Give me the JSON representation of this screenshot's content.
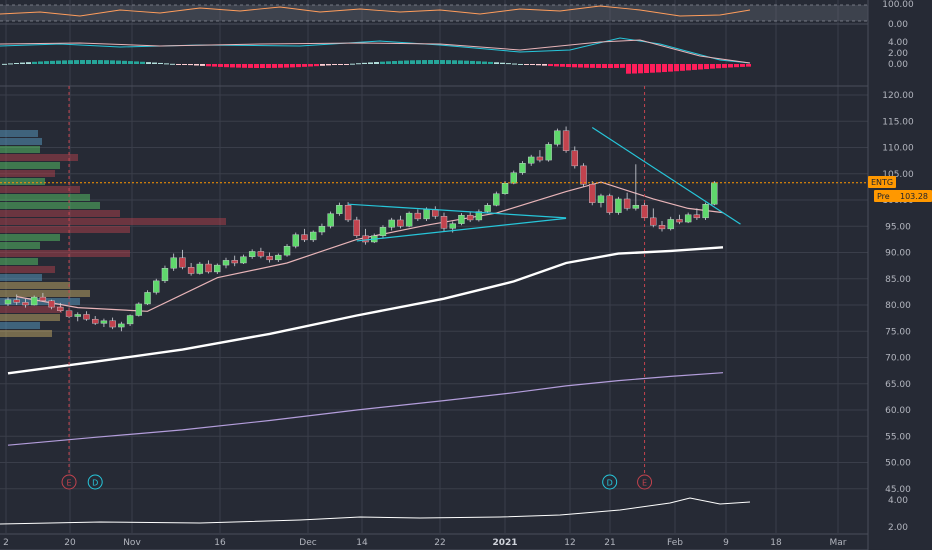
{
  "chart_data": {
    "type": "candlestick",
    "ticker": "ENTG",
    "pre_label": "Pre",
    "pre_price": "103.28",
    "price_axis": [
      "120.00",
      "115.00",
      "110.00",
      "105.00",
      "100.00",
      "95.00",
      "90.00",
      "85.00",
      "80.00",
      "75.00",
      "70.00",
      "65.00",
      "60.00",
      "55.00",
      "50.00",
      "45.00"
    ],
    "rsi_axis": [
      "100.00",
      "0.00"
    ],
    "macd_axis": [
      "4.00",
      "2.00",
      "0.00"
    ],
    "vol_axis": [
      "4.00",
      "2.00"
    ],
    "x_ticks": [
      {
        "label": "2",
        "bold": false
      },
      {
        "label": "20",
        "bold": false
      },
      {
        "label": "Nov",
        "bold": false
      },
      {
        "label": "16",
        "bold": false
      },
      {
        "label": "Dec",
        "bold": false
      },
      {
        "label": "14",
        "bold": false
      },
      {
        "label": "22",
        "bold": false
      },
      {
        "label": "2021",
        "bold": true
      },
      {
        "label": "12",
        "bold": false
      },
      {
        "label": "21",
        "bold": false
      },
      {
        "label": "Feb",
        "bold": false
      },
      {
        "label": "9",
        "bold": false
      },
      {
        "label": "18",
        "bold": false
      },
      {
        "label": "Mar",
        "bold": false
      }
    ],
    "events": [
      {
        "label": "E",
        "kind": "earnings"
      },
      {
        "label": "D",
        "kind": "dividend"
      },
      {
        "label": "D",
        "kind": "dividend"
      },
      {
        "label": "E",
        "kind": "earnings"
      }
    ],
    "colors": {
      "up": "#5fd86c",
      "down": "#c2434e",
      "bg": "#262a35",
      "grid": "#3a3e4a",
      "price_line": "#ff9800",
      "triangle": "#26c6da",
      "ma_white": "#ffffff",
      "ma_lavender": "#b39ddb",
      "ma_pink": "#e8b4b8"
    },
    "candles": [
      [
        80.2,
        81.5,
        79.8,
        81.0
      ],
      [
        81.0,
        82.0,
        80.0,
        80.5
      ],
      [
        80.5,
        81.2,
        79.5,
        80.0
      ],
      [
        80.0,
        81.8,
        79.9,
        81.5
      ],
      [
        81.5,
        82.3,
        80.6,
        80.8
      ],
      [
        80.8,
        81.0,
        79.2,
        79.6
      ],
      [
        79.6,
        80.4,
        78.7,
        78.9
      ],
      [
        78.9,
        79.5,
        77.5,
        77.8
      ],
      [
        77.8,
        78.6,
        76.9,
        78.2
      ],
      [
        78.2,
        78.8,
        77.0,
        77.3
      ],
      [
        77.3,
        77.9,
        76.2,
        76.5
      ],
      [
        76.5,
        77.4,
        75.8,
        77.0
      ],
      [
        77.0,
        77.6,
        75.4,
        75.8
      ],
      [
        75.8,
        76.8,
        75.0,
        76.4
      ],
      [
        76.4,
        78.2,
        76.0,
        78.0
      ],
      [
        78.0,
        80.5,
        77.8,
        80.2
      ],
      [
        80.2,
        82.8,
        80.0,
        82.4
      ],
      [
        82.4,
        85.0,
        82.0,
        84.6
      ],
      [
        84.6,
        87.5,
        84.2,
        87.0
      ],
      [
        87.0,
        89.8,
        86.5,
        89.0
      ],
      [
        89.0,
        90.5,
        86.8,
        87.2
      ],
      [
        87.2,
        88.0,
        85.6,
        86.0
      ],
      [
        86.0,
        88.2,
        85.8,
        87.8
      ],
      [
        87.8,
        88.5,
        86.0,
        86.3
      ],
      [
        86.3,
        87.9,
        85.9,
        87.6
      ],
      [
        87.6,
        89.0,
        87.0,
        88.5
      ],
      [
        88.5,
        89.4,
        87.4,
        88.0
      ],
      [
        88.0,
        89.6,
        87.8,
        89.2
      ],
      [
        89.2,
        90.6,
        88.8,
        90.2
      ],
      [
        90.2,
        90.9,
        88.9,
        89.3
      ],
      [
        89.3,
        90.0,
        88.1,
        88.6
      ],
      [
        88.6,
        89.8,
        88.2,
        89.5
      ],
      [
        89.5,
        91.6,
        89.2,
        91.2
      ],
      [
        91.2,
        93.8,
        90.8,
        93.4
      ],
      [
        93.4,
        94.5,
        92.0,
        92.4
      ],
      [
        92.4,
        94.2,
        92.0,
        93.9
      ],
      [
        93.9,
        95.5,
        93.3,
        95.0
      ],
      [
        95.0,
        97.8,
        94.6,
        97.4
      ],
      [
        97.4,
        99.5,
        97.0,
        99.0
      ],
      [
        99.0,
        99.6,
        95.8,
        96.2
      ],
      [
        96.2,
        96.8,
        92.8,
        93.2
      ],
      [
        93.2,
        94.5,
        91.5,
        92.0
      ],
      [
        92.0,
        93.6,
        91.8,
        93.2
      ],
      [
        93.2,
        95.2,
        92.8,
        94.8
      ],
      [
        94.8,
        96.6,
        94.2,
        96.2
      ],
      [
        96.2,
        97.0,
        94.6,
        95.0
      ],
      [
        95.0,
        97.8,
        94.8,
        97.5
      ],
      [
        97.5,
        98.2,
        96.0,
        96.4
      ],
      [
        96.4,
        98.6,
        96.0,
        98.2
      ],
      [
        98.2,
        98.8,
        96.4,
        96.9
      ],
      [
        96.9,
        97.6,
        94.0,
        94.6
      ],
      [
        94.6,
        95.9,
        93.8,
        95.5
      ],
      [
        95.5,
        97.5,
        95.2,
        97.1
      ],
      [
        97.1,
        97.8,
        95.8,
        96.2
      ],
      [
        96.2,
        98.2,
        95.9,
        97.8
      ],
      [
        97.8,
        99.4,
        97.5,
        99.0
      ],
      [
        99.0,
        101.6,
        98.8,
        101.2
      ],
      [
        101.2,
        103.6,
        101.0,
        103.2
      ],
      [
        103.2,
        105.6,
        103.0,
        105.2
      ],
      [
        105.2,
        107.4,
        104.8,
        107.0
      ],
      [
        107.0,
        108.6,
        106.5,
        108.2
      ],
      [
        108.2,
        109.5,
        107.2,
        107.6
      ],
      [
        107.6,
        111.0,
        107.3,
        110.6
      ],
      [
        110.6,
        113.6,
        110.2,
        113.2
      ],
      [
        113.2,
        114.0,
        109.0,
        109.4
      ],
      [
        109.4,
        110.2,
        106.0,
        106.5
      ],
      [
        106.5,
        107.0,
        102.5,
        103.0
      ],
      [
        103.0,
        103.6,
        99.0,
        99.5
      ],
      [
        99.5,
        101.2,
        98.6,
        100.8
      ],
      [
        100.8,
        101.2,
        97.2,
        97.6
      ],
      [
        97.6,
        100.6,
        97.2,
        100.2
      ],
      [
        100.2,
        101.4,
        98.0,
        98.4
      ],
      [
        98.4,
        106.8,
        98.0,
        99.0
      ],
      [
        99.0,
        99.6,
        96.0,
        96.6
      ],
      [
        96.6,
        98.4,
        94.8,
        95.2
      ],
      [
        95.2,
        96.0,
        94.0,
        94.5
      ],
      [
        94.5,
        96.8,
        94.2,
        96.3
      ],
      [
        96.3,
        97.2,
        95.4,
        95.8
      ],
      [
        95.8,
        97.6,
        95.6,
        97.2
      ],
      [
        97.2,
        98.4,
        96.2,
        96.6
      ],
      [
        96.6,
        99.5,
        96.2,
        99.2
      ],
      [
        99.2,
        103.6,
        99.0,
        103.3
      ]
    ],
    "moving_averages": [
      {
        "name": "",
        "color": "#e8b4b8",
        "values": [
          [
            1,
            81.6
          ],
          [
            8,
            79.5
          ],
          [
            16,
            78.8
          ],
          [
            24,
            85.2
          ],
          [
            32,
            88.0
          ],
          [
            40,
            92.5
          ],
          [
            48,
            95.2
          ],
          [
            56,
            97.5
          ],
          [
            64,
            101.6
          ],
          [
            68,
            103.4
          ],
          [
            74,
            100.2
          ],
          [
            78,
            98.4
          ],
          [
            82,
            97.6
          ]
        ]
      },
      {
        "name": "",
        "color": "#ffffff",
        "values": [
          [
            0,
            67.0
          ],
          [
            10,
            69.2
          ],
          [
            20,
            71.5
          ],
          [
            30,
            74.5
          ],
          [
            40,
            78.0
          ],
          [
            50,
            81.2
          ],
          [
            58,
            84.5
          ],
          [
            64,
            88.0
          ],
          [
            70,
            89.8
          ],
          [
            76,
            90.3
          ],
          [
            82,
            91.0
          ]
        ]
      },
      {
        "name": "",
        "color": "#b39ddb",
        "values": [
          [
            0,
            53.3
          ],
          [
            10,
            54.8
          ],
          [
            20,
            56.2
          ],
          [
            30,
            58.0
          ],
          [
            40,
            60.0
          ],
          [
            50,
            61.8
          ],
          [
            58,
            63.3
          ],
          [
            64,
            64.6
          ],
          [
            70,
            65.6
          ],
          [
            76,
            66.4
          ],
          [
            82,
            67.1
          ]
        ]
      }
    ],
    "trendlines": [
      {
        "from": [
          39,
          99.2
        ],
        "to": [
          64,
          96.6
        ]
      },
      {
        "from": [
          40,
          92.2
        ],
        "to": [
          64,
          96.5
        ]
      },
      {
        "from": [
          67,
          113.8
        ],
        "to": [
          84,
          95.4
        ]
      }
    ],
    "event_positions": [
      7,
      10,
      69,
      73
    ],
    "rsi_range": [
      0,
      100
    ],
    "macd_range": [
      -1,
      5
    ],
    "vol_range": [
      1.5,
      4.5
    ]
  }
}
